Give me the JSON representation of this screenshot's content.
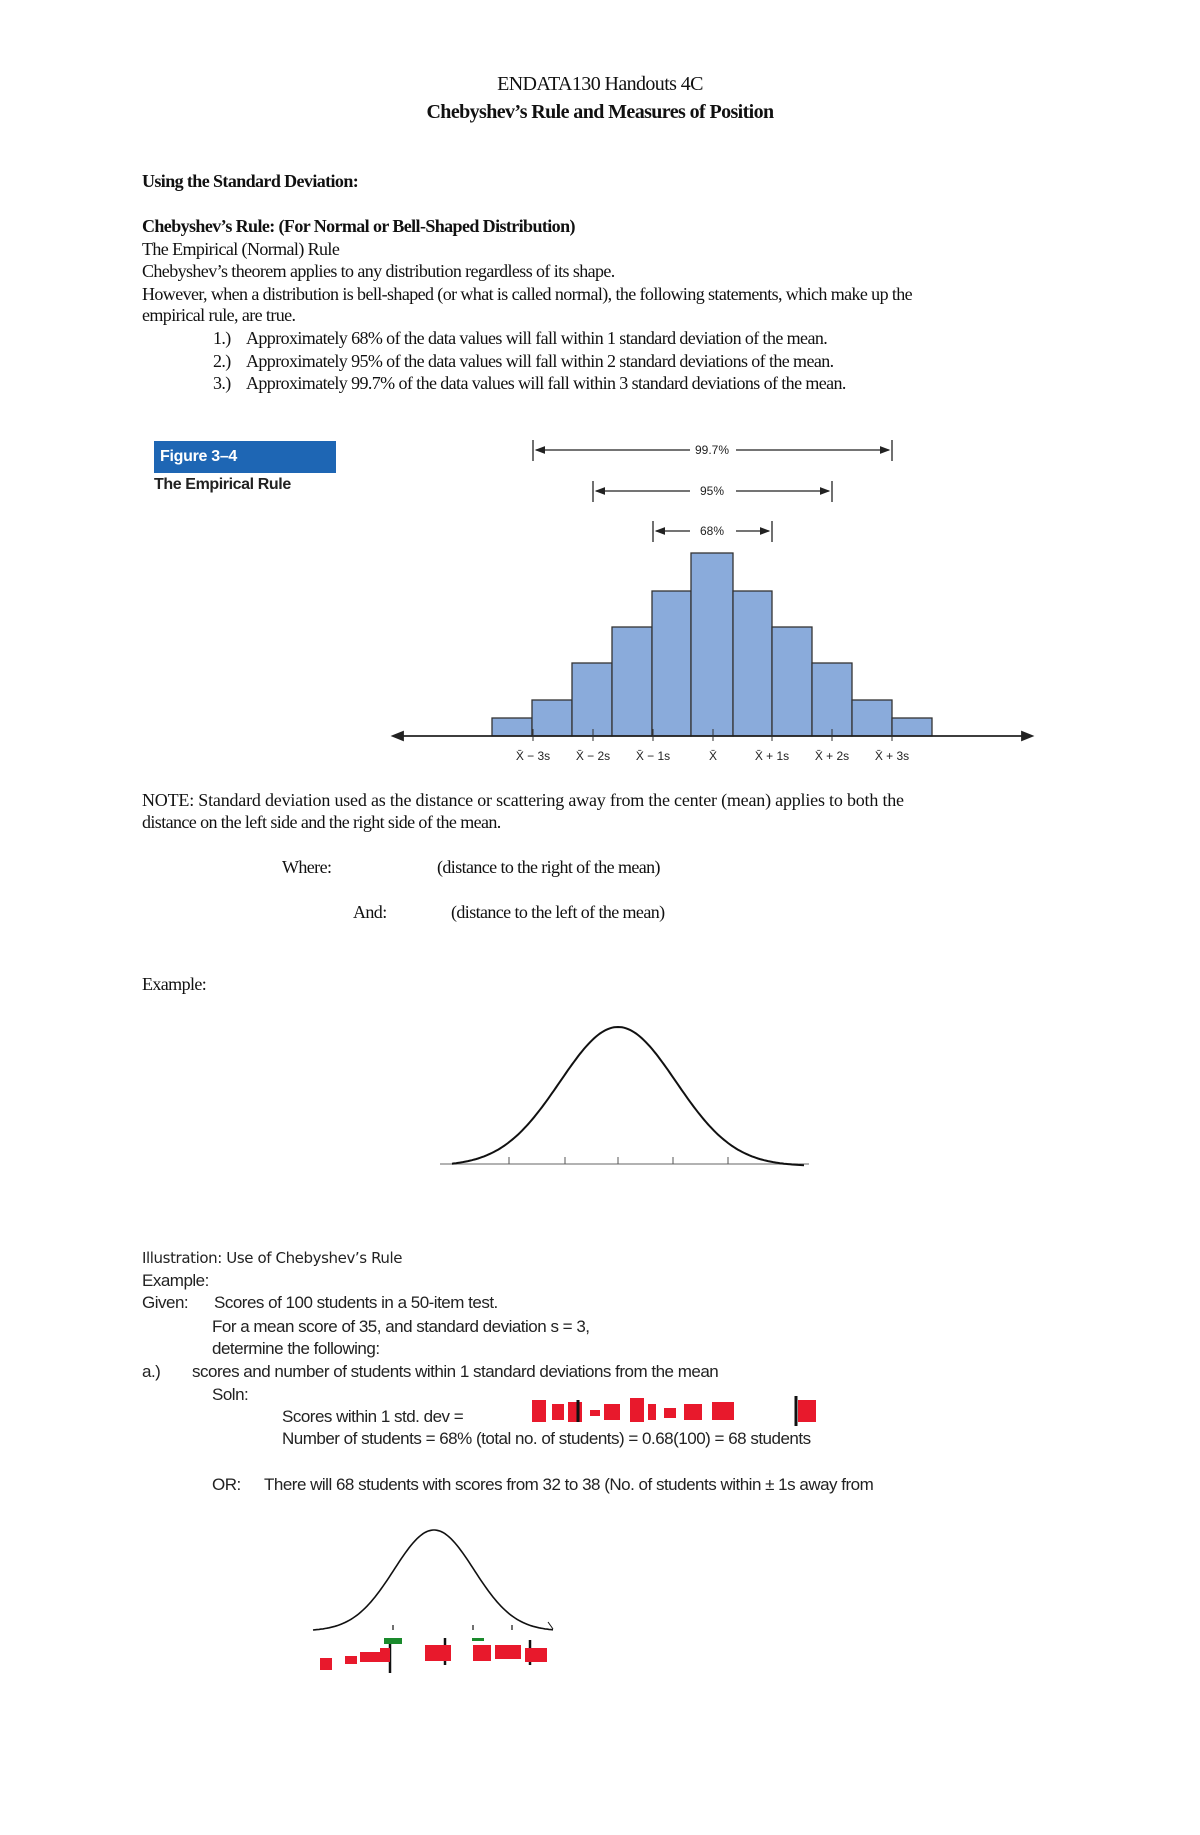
{
  "header": {
    "title": "ENDATA130 Handouts 4C",
    "subtitle": "Chebyshev’s Rule and Measures of Position"
  },
  "section1": {
    "heading": "Using the Standard Deviation:",
    "subheading": "Chebyshev’s Rule: (For Normal or Bell-Shaped Distribution)",
    "lines": [
      "The Empirical (Normal) Rule",
      "Chebyshev’s theorem applies to any distribution regardless of its shape.",
      "However, when a distribution is bell-shaped (or what is called normal), the following statements, which make up the",
      "empirical rule, are true."
    ],
    "list": [
      {
        "num": "1.)",
        "text": "Approximately 68% of the data values will fall within 1 standard deviation of the mean."
      },
      {
        "num": "2.)",
        "text": "Approximately 95% of the data values will fall within 2 standard deviations of the mean."
      },
      {
        "num": "3.)",
        "text": "Approximately 99.7% of the data values will fall within 3 standard deviations of the mean."
      }
    ]
  },
  "figure": {
    "label": "Figure 3–4",
    "caption": "The Empirical Rule",
    "bar_color": "#8aabdb",
    "ranges": [
      "99.7%",
      "95%",
      "68%"
    ],
    "ticks": [
      "X̄ − 3s",
      "X̄ − 2s",
      "X̄ − 1s",
      "X̄",
      "X̄ + 1s",
      "X̄ + 2s",
      "X̄ + 3s"
    ]
  },
  "note": {
    "line1": "NOTE:    Standard deviation used as the distance or scattering away from the center (mean) applies to both the",
    "line2": "distance on the left side and the right side of the mean.",
    "where_label": "Where:",
    "where_text": "(distance to the right of the mean)",
    "and_label": "And:",
    "and_text": "(distance to the left of the mean)"
  },
  "example_label": "Example:",
  "illustration": {
    "heading": "Illustration:  Use of Chebyshev’s Rule",
    "example": "Example:",
    "given_label": "Given:",
    "given_text": "Scores of 100 students in a 50-item test.",
    "line2": "For a mean score of  35, and standard deviation s = 3,",
    "line3": "determine the following:",
    "a_label": "a.)",
    "a_text": "scores and number of students within 1 standard deviations from the mean",
    "soln": "Soln:",
    "scores_line": "Scores within 1 std. dev  =",
    "number_line": "Number of students  = 68% (total no. of students) = 0.68(100)  = 68 students",
    "or_label": "OR:",
    "or_text": "There will 68 students with scores from 32 to 38 (No. of students within ±  1s away from",
    "handwriting_color": "#e8192c"
  }
}
